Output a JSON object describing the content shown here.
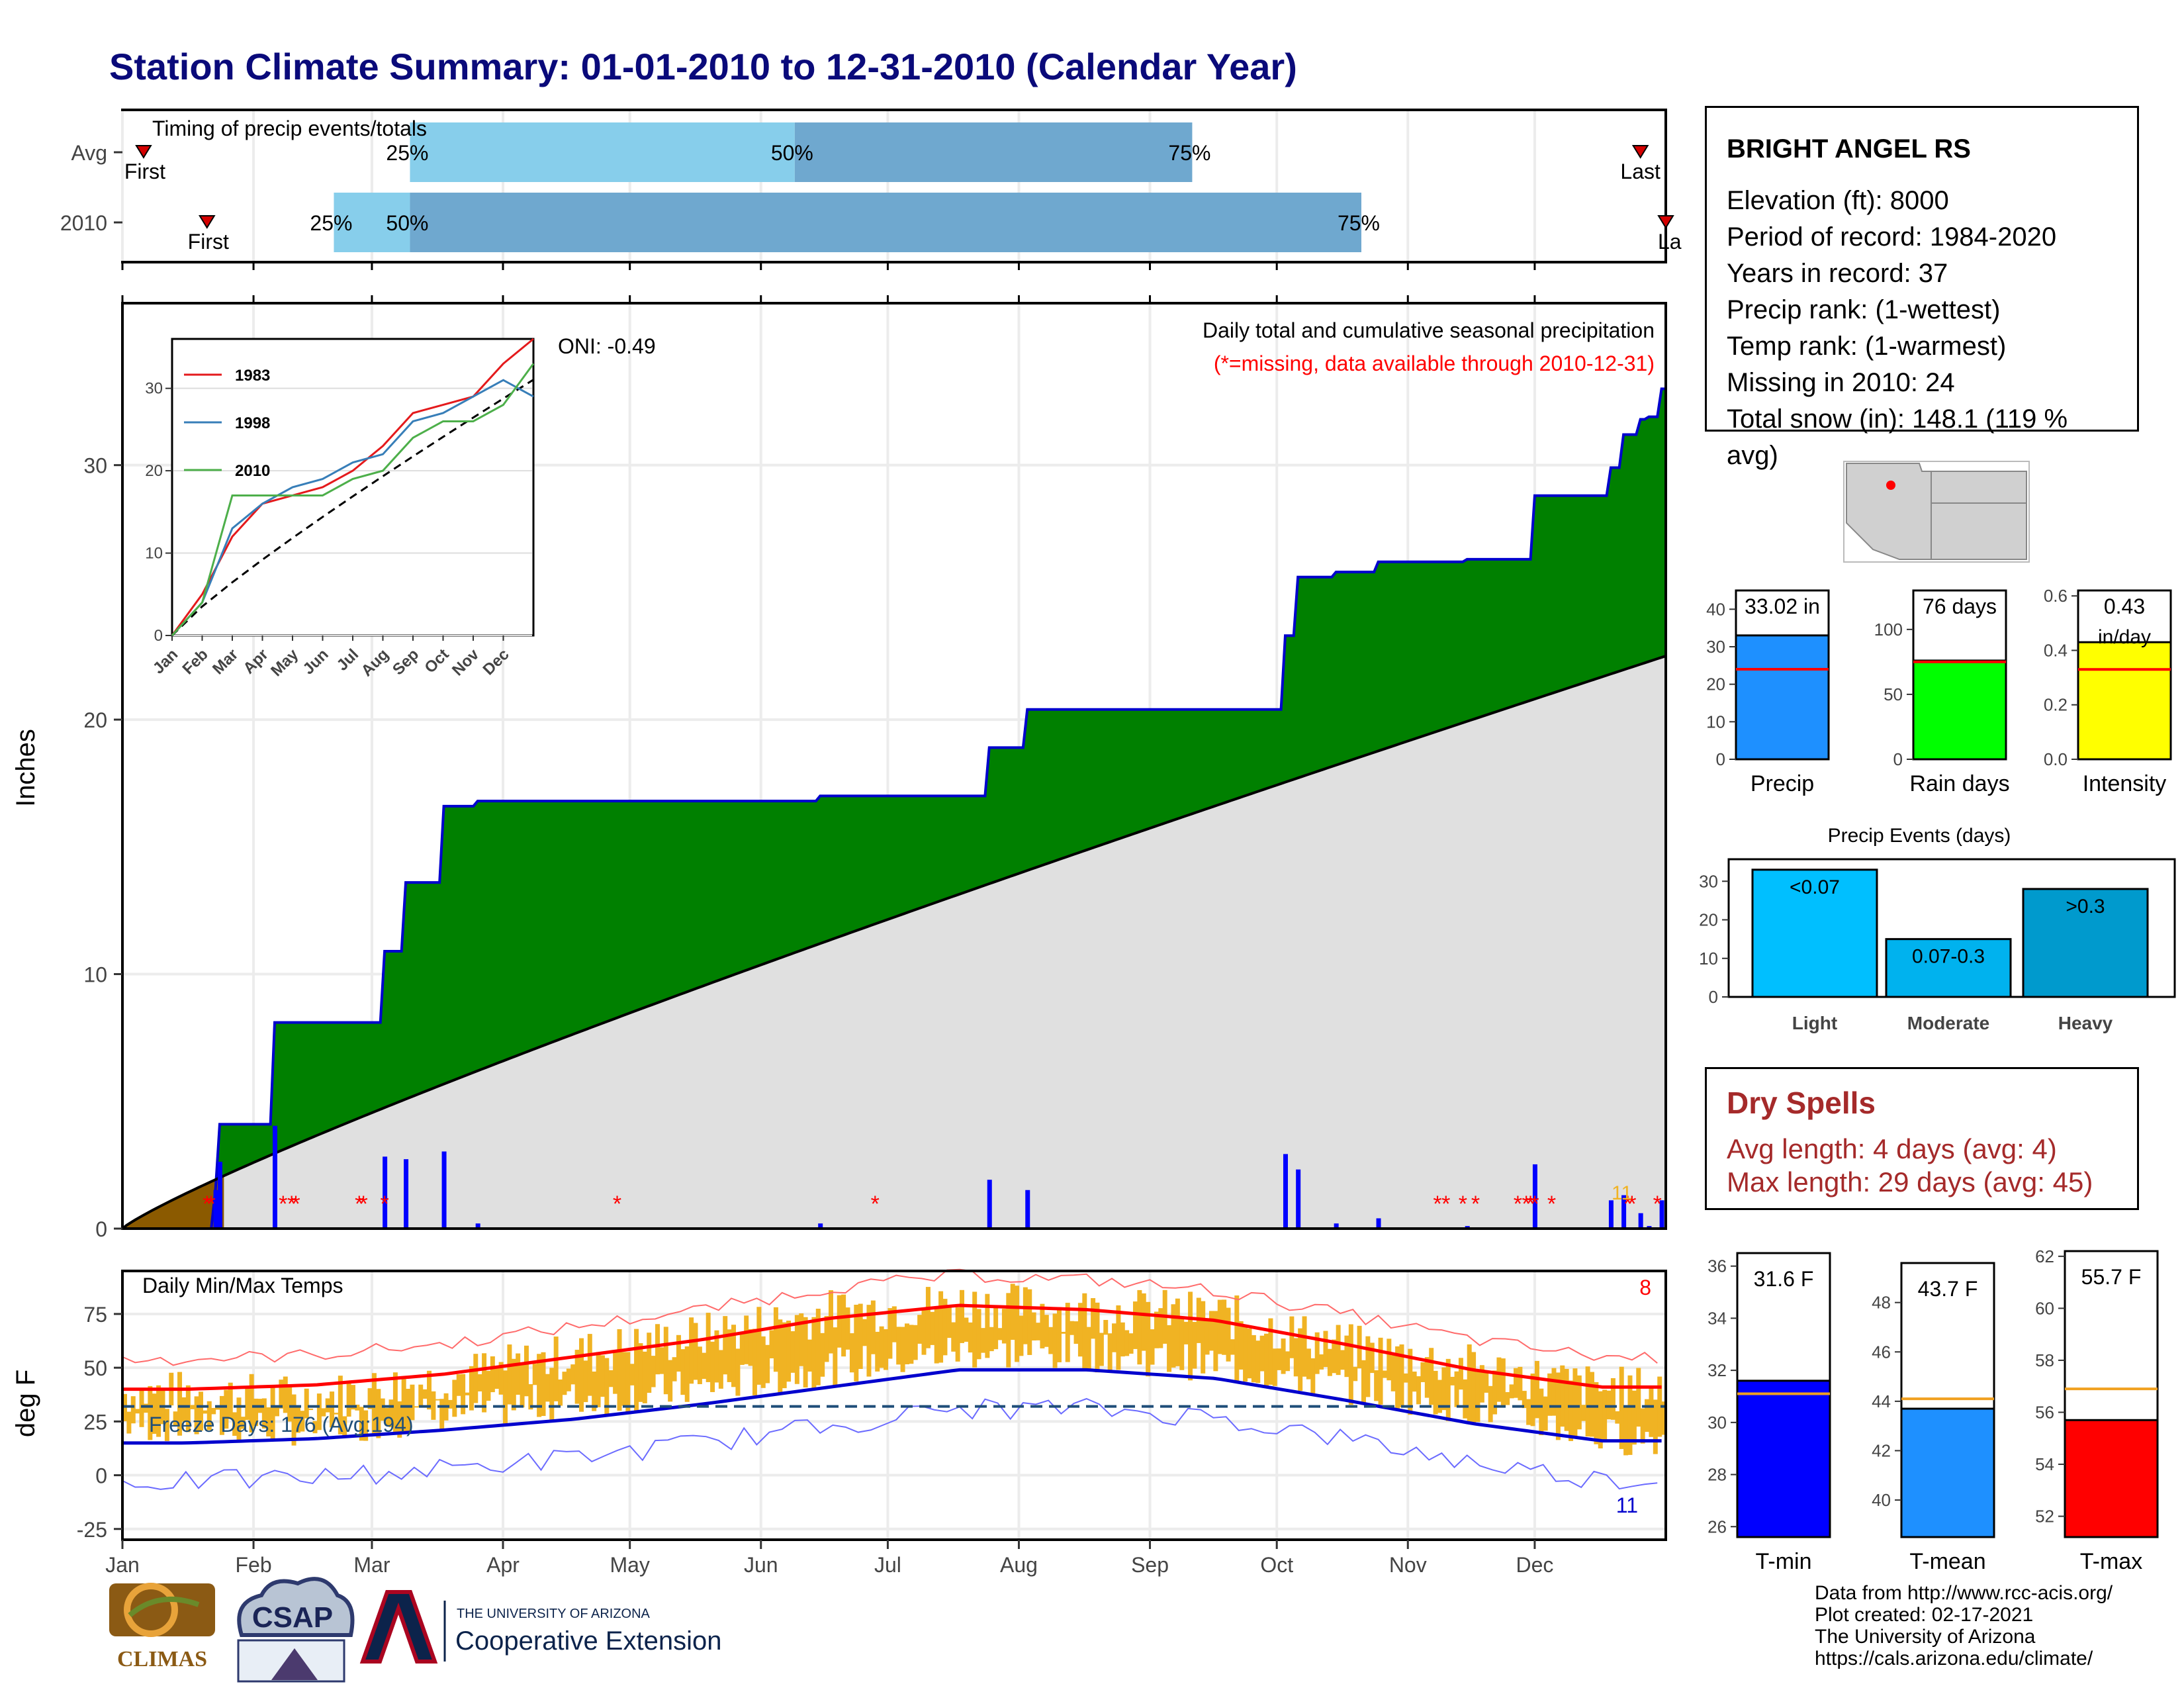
{
  "title": "Station Climate Summary: 01-01-2010 to 12-31-2010 (Calendar Year)",
  "timing": {
    "heading": "Timing of precip events/totals",
    "rows": [
      {
        "label": "Avg",
        "first_label": "First",
        "last_label": "Last",
        "q25_label": "25%",
        "q50_label": "50%",
        "q75_label": "75%",
        "first_day": 5,
        "q25_day": 68,
        "q50_day": 159,
        "q75_day": 253,
        "last_day": 359
      },
      {
        "label": "2010",
        "first_label": "First",
        "last_label": "La",
        "q25_label": "25%",
        "q50_label": "50%",
        "q75_label": "75%",
        "first_day": 20,
        "q25_day": 50,
        "q50_day": 68,
        "q75_day": 293,
        "last_day": 365
      }
    ],
    "colors": {
      "light": "#87ceeb",
      "dark": "#6fa8cf",
      "marker": "#d40000"
    }
  },
  "precip": {
    "ylabel": "Inches",
    "oni_label": "ONI: -0.49",
    "subtitle": "Daily total and cumulative seasonal precipitation",
    "missing_note": "(*=missing, data available through 2010-12-31)",
    "y_ticks": [
      0,
      10,
      20,
      30
    ],
    "corner_label": "11",
    "colors": {
      "above": "#008000",
      "line": "#0000cd",
      "avg_fill": "#e0e0e0",
      "below": "#8b5a00",
      "daily": "#0000ff",
      "missing": "#ff0000"
    }
  },
  "inset": {
    "series": [
      {
        "name": "1983",
        "color": "#e41a1c"
      },
      {
        "name": "1998",
        "color": "#377eb8"
      },
      {
        "name": "2010",
        "color": "#4daf4a"
      }
    ],
    "y_ticks": [
      0,
      10,
      20,
      30
    ],
    "x_ticks": [
      "Jan",
      "Feb",
      "Mar",
      "Apr",
      "May",
      "Jun",
      "Jul",
      "Aug",
      "Sep",
      "Oct",
      "Nov",
      "Dec"
    ]
  },
  "temps": {
    "heading": "Daily Min/Max Temps",
    "ylabel": "deg F",
    "freeze_label": "Freeze Days: 176 (Avg:194)",
    "corner_top": "8",
    "corner_bottom": "11",
    "y_ticks": [
      -25,
      0,
      25,
      50,
      75
    ],
    "freeze_line": 32,
    "colors": {
      "bars": "#f0b323",
      "max_avg": "#ff0000",
      "min_avg": "#0000cd",
      "freeze": "#1f4e79"
    }
  },
  "months": [
    "Jan",
    "Feb",
    "Mar",
    "Apr",
    "May",
    "Jun",
    "Jul",
    "Aug",
    "Sep",
    "Oct",
    "Nov",
    "Dec"
  ],
  "station": {
    "name": "BRIGHT ANGEL RS",
    "lines": [
      "Elevation (ft): 8000",
      "Period of record: 1984-2020",
      "Years in record: 37",
      "Precip rank:  (1-wettest)",
      "Temp rank:  (1-warmest)",
      "Missing in 2010: 24",
      "Total snow (in): 148.1 (119 % avg)"
    ]
  },
  "mini_bars": [
    {
      "label": "Precip",
      "value_label": "33.02 in",
      "value": 33.02,
      "avg": 24,
      "ymax": 45,
      "ticks": [
        0,
        10,
        20,
        30,
        40
      ],
      "color": "#1e90ff"
    },
    {
      "label": "Rain days",
      "value_label": "76 days",
      "value": 76,
      "avg": 75,
      "ymax": 130,
      "ticks": [
        0,
        50,
        100
      ],
      "color": "#00ff00"
    },
    {
      "label": "Intensity",
      "value_label": "0.43",
      "value_label2": "in/day",
      "value": 0.43,
      "avg": 0.33,
      "ymax": 0.62,
      "ticks": [
        "0.0",
        "0.2",
        "0.4",
        "0.6"
      ],
      "color": "#ffff00"
    }
  ],
  "precip_events": {
    "title": "Precip Events (days)",
    "categories": [
      "Light",
      "Moderate",
      "Heavy"
    ],
    "bar_labels": [
      "<0.07",
      "0.07-0.3",
      ">0.3"
    ],
    "values": [
      33,
      15,
      28
    ],
    "colors": [
      "#00bfff",
      "#00b2ee",
      "#009acd"
    ],
    "ticks": [
      0,
      10,
      20,
      30
    ]
  },
  "dry_spells": {
    "heading": "Dry Spells",
    "avg_line": "Avg length: 4 days (avg: 4)",
    "max_line": "Max length: 29 days (avg: 45)"
  },
  "temp_bars": [
    {
      "label": "T-min",
      "value_label": "31.6 F",
      "value": 31.6,
      "avg": 31.1,
      "ymin": 25.6,
      "ymax": 36.5,
      "ticks": [
        26,
        28,
        30,
        32,
        34,
        36
      ],
      "color": "#0000ff"
    },
    {
      "label": "T-mean",
      "value_label": "43.7 F",
      "value": 43.7,
      "avg": 44.1,
      "ymin": 38.5,
      "ymax": 49.6,
      "ticks": [
        40,
        42,
        44,
        46,
        48
      ],
      "color": "#1e90ff"
    },
    {
      "label": "T-max",
      "value_label": "55.7 F",
      "value": 55.7,
      "avg": 56.9,
      "ymin": 51.2,
      "ymax": 62.2,
      "ticks": [
        52,
        54,
        56,
        58,
        60,
        62
      ],
      "color": "#ff0000"
    }
  ],
  "credits": [
    "Data from http://www.rcc-acis.org/",
    "Plot created: 02-17-2021",
    "The University of Arizona",
    "https://cals.arizona.edu/climate/"
  ],
  "logos": {
    "climas": "CLIMAS",
    "csap": "CSAP",
    "ua_small": "THE UNIVERSITY OF ARIZONA",
    "ua_big": "Cooperative Extension"
  },
  "chart_data": [
    {
      "type": "line",
      "title": "Daily total and cumulative seasonal precipitation",
      "ylabel": "Inches",
      "ylim": [
        0,
        36
      ],
      "series": [
        {
          "name": "2010",
          "x": [
            "01-01",
            "01-23",
            "01-24",
            "02-05",
            "02-06",
            "03-01",
            "03-04",
            "03-09",
            "03-17",
            "03-18",
            "03-26",
            "06-15",
            "07-19",
            "07-25",
            "08-03",
            "09-15",
            "10-03",
            "10-06",
            "10-15",
            "10-16",
            "10-25",
            "11-15",
            "11-25",
            "12-01",
            "12-15",
            "12-19",
            "12-22",
            "12-26",
            "12-28",
            "12-31"
          ],
          "values": [
            0,
            1.5,
            4.1,
            4.1,
            8.1,
            8.1,
            10.9,
            13.6,
            13.6,
            16.6,
            16.8,
            17.0,
            17.0,
            18.9,
            20.4,
            20.4,
            23.3,
            25.6,
            25.8,
            25.8,
            26.2,
            26.3,
            26.3,
            28.8,
            28.8,
            29.9,
            31.2,
            31.8,
            31.9,
            33.0
          ]
        }
      ]
    },
    {
      "type": "line",
      "ylim": [
        0,
        36
      ],
      "series": [
        {
          "name": "1983",
          "x": [
            "Jan",
            "Feb",
            "Mar",
            "Apr",
            "May",
            "Jun",
            "Jul",
            "Aug",
            "Sep",
            "Oct",
            "Nov",
            "Dec",
            "Dec31"
          ],
          "values": [
            0,
            5,
            12,
            16,
            17,
            18,
            20,
            23,
            27,
            28,
            29,
            33,
            36
          ]
        },
        {
          "name": "1998",
          "x": [
            "Jan",
            "Feb",
            "Mar",
            "Apr",
            "May",
            "Jun",
            "Jul",
            "Aug",
            "Sep",
            "Oct",
            "Nov",
            "Dec",
            "Dec31"
          ],
          "values": [
            0,
            4,
            13,
            16,
            18,
            19,
            21,
            22,
            26,
            27,
            29,
            31,
            29
          ]
        },
        {
          "name": "2010",
          "x": [
            "Jan",
            "Feb",
            "Mar",
            "Apr",
            "May",
            "Jun",
            "Jul",
            "Aug",
            "Sep",
            "Oct",
            "Nov",
            "Dec",
            "Dec31"
          ],
          "values": [
            0,
            4,
            17,
            17,
            17,
            17,
            19,
            20,
            24,
            26,
            26,
            28,
            33
          ]
        }
      ]
    },
    {
      "type": "bar",
      "title": "Daily Min/Max Temps",
      "ylabel": "deg F",
      "ylim": [
        -30,
        95
      ],
      "categories": [
        "Jan",
        "Feb",
        "Mar",
        "Apr",
        "May",
        "Jun",
        "Jul",
        "Aug",
        "Sep",
        "Oct",
        "Nov",
        "Dec"
      ],
      "series": [
        {
          "name": "max_avg",
          "values": [
            40,
            42,
            47,
            55,
            63,
            73,
            79,
            77,
            72,
            61,
            49,
            41
          ]
        },
        {
          "name": "min_avg",
          "values": [
            15,
            17,
            21,
            26,
            33,
            41,
            49,
            49,
            45,
            35,
            24,
            16
          ]
        },
        {
          "name": "daily_max",
          "values": [
            38,
            36,
            45,
            56,
            65,
            76,
            80,
            77,
            75,
            60,
            50,
            40
          ]
        },
        {
          "name": "daily_min",
          "values": [
            16,
            14,
            21,
            27,
            33,
            42,
            50,
            49,
            44,
            34,
            24,
            10
          ]
        }
      ]
    }
  ]
}
